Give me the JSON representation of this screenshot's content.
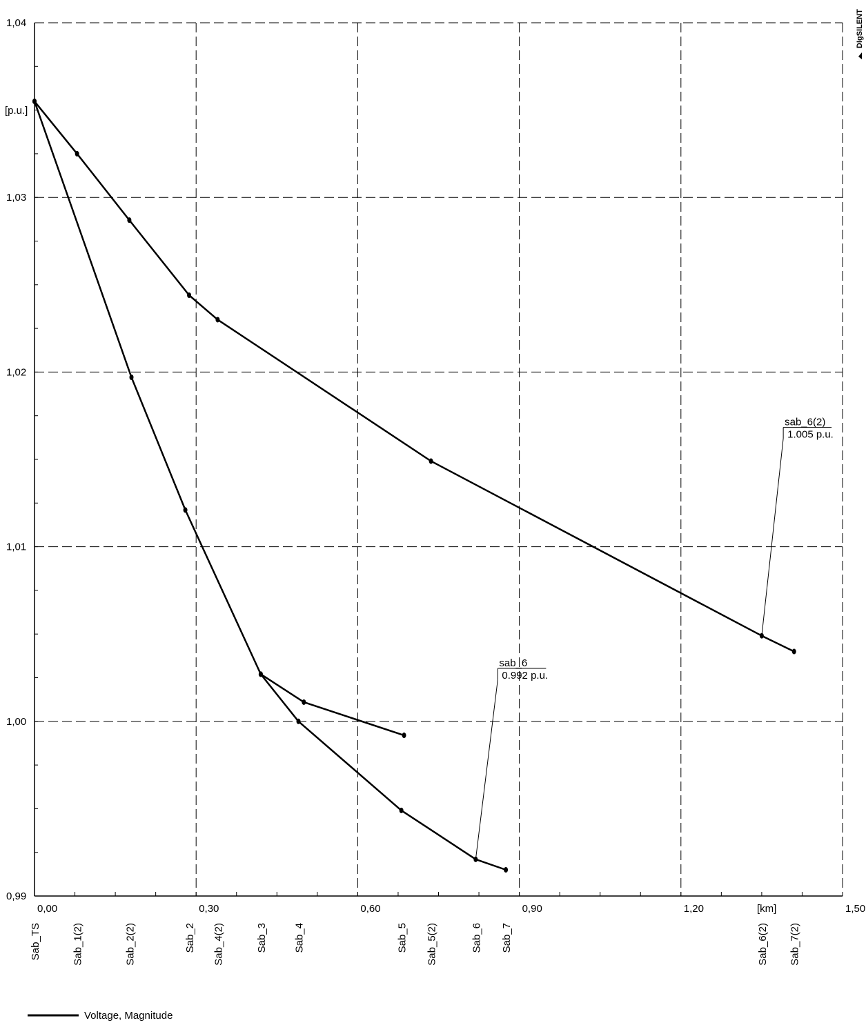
{
  "chart_data": {
    "type": "line",
    "brand": "DIgSILENT",
    "ylabel": "[p.u.]",
    "xlabel": "[km]",
    "xlim": [
      0,
      1.5
    ],
    "ylim": [
      0.99,
      1.04
    ],
    "grid": true,
    "x_ticks": [
      {
        "value": 0.0,
        "label": "0,00"
      },
      {
        "value": 0.3,
        "label": "0,30"
      },
      {
        "value": 0.6,
        "label": "0,60"
      },
      {
        "value": 0.9,
        "label": "0,90"
      },
      {
        "value": 1.2,
        "label": "1,20"
      },
      {
        "value": 1.5,
        "label": "1,50"
      }
    ],
    "y_ticks": [
      {
        "value": 1.04,
        "label": "1,04"
      },
      {
        "value": 1.03,
        "label": "1,03"
      },
      {
        "value": 1.02,
        "label": "1,02"
      },
      {
        "value": 1.01,
        "label": "1,01"
      },
      {
        "value": 1.0,
        "label": "1,00"
      },
      {
        "value": 0.99,
        "label": "0,99"
      }
    ],
    "legend": {
      "position": "bottom-left",
      "entries": [
        "Voltage, Magnitude"
      ]
    },
    "series": [
      {
        "name": "Voltage, Magnitude",
        "color": "#000000",
        "segments": [
          [
            [
              0.0,
              1.0355
            ],
            [
              0.079,
              1.0325
            ],
            [
              0.176,
              1.0287
            ],
            [
              0.287,
              1.0244
            ],
            [
              0.34,
              1.023
            ],
            [
              0.736,
              1.0149
            ],
            [
              1.35,
              1.0049
            ],
            [
              1.41,
              1.004
            ]
          ],
          [
            [
              0.0,
              1.0355
            ],
            [
              0.18,
              1.0197
            ],
            [
              0.28,
              1.0121
            ],
            [
              0.42,
              1.0027
            ],
            [
              0.5,
              1.0011
            ],
            [
              0.686,
              0.9992
            ]
          ],
          [
            [
              0.42,
              1.0027
            ],
            [
              0.49,
              1.0
            ],
            [
              0.681,
              0.9949
            ],
            [
              0.819,
              0.9921
            ],
            [
              0.875,
              0.9915
            ]
          ]
        ]
      }
    ],
    "bus_labels": [
      {
        "x": 0.0,
        "label": "Sab_TS"
      },
      {
        "x": 0.079,
        "label": "Sab_1(2)"
      },
      {
        "x": 0.176,
        "label": "Sab_2(2)"
      },
      {
        "x": 0.287,
        "label": "Sab_2"
      },
      {
        "x": 0.34,
        "label": "Sab_4(2)"
      },
      {
        "x": 0.42,
        "label": "Sab_3"
      },
      {
        "x": 0.49,
        "label": "Sab_4"
      },
      {
        "x": 0.736,
        "label": "Sab_5(2)"
      },
      {
        "x": 0.681,
        "label": "Sab_5"
      },
      {
        "x": 0.819,
        "label": "Sab_6"
      },
      {
        "x": 0.875,
        "label": "Sab_7"
      },
      {
        "x": 1.35,
        "label": "Sab_6(2)"
      },
      {
        "x": 1.41,
        "label": "Sab_7(2)"
      }
    ],
    "annotations": [
      {
        "name": "sab_6(2)",
        "value": "1.005 p.u.",
        "point": [
          1.35,
          1.0049
        ],
        "box": [
          1.39,
          1.0162
        ]
      },
      {
        "name": "sab_6",
        "value": "0.992 p.u.",
        "point": [
          0.819,
          0.9921
        ],
        "box": [
          0.86,
          1.0024
        ]
      }
    ]
  }
}
